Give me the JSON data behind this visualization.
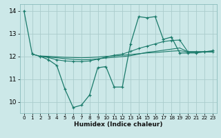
{
  "xlabel": "Humidex (Indice chaleur)",
  "bg_color": "#cce8e8",
  "grid_color": "#aacccc",
  "line_color": "#1a7a6a",
  "xlim": [
    -0.5,
    23.5
  ],
  "ylim": [
    9.5,
    14.3
  ],
  "yticks": [
    10,
    11,
    12,
    13,
    14
  ],
  "xticks": [
    0,
    1,
    2,
    3,
    4,
    5,
    6,
    7,
    8,
    9,
    10,
    11,
    12,
    13,
    14,
    15,
    16,
    17,
    18,
    19,
    20,
    21,
    22,
    23
  ],
  "s1_x": [
    0,
    1,
    2,
    3,
    4,
    5,
    6,
    7,
    8,
    9,
    10,
    11,
    12,
    13,
    14,
    15,
    16,
    17,
    18,
    19,
    20,
    21,
    22,
    23
  ],
  "s1_y": [
    14.0,
    12.1,
    12.0,
    11.85,
    11.6,
    10.55,
    9.75,
    9.85,
    10.3,
    11.5,
    11.55,
    10.65,
    10.65,
    12.55,
    13.75,
    13.7,
    13.75,
    12.75,
    12.85,
    12.15,
    12.15,
    12.15,
    12.2,
    12.25
  ],
  "s2_x": [
    1,
    2,
    3,
    4,
    5,
    6,
    7,
    8,
    9,
    10,
    11,
    12,
    13,
    14,
    15,
    16,
    17,
    18,
    19,
    20,
    21,
    22,
    23
  ],
  "s2_y": [
    12.1,
    12.0,
    11.95,
    11.85,
    11.8,
    11.78,
    11.77,
    11.8,
    11.88,
    11.97,
    12.05,
    12.1,
    12.22,
    12.35,
    12.45,
    12.55,
    12.65,
    12.7,
    12.72,
    12.2,
    12.2,
    12.2,
    12.2
  ],
  "s3_x": [
    2,
    3,
    4,
    5,
    6,
    7,
    8,
    9,
    10,
    11,
    12,
    13,
    14,
    15,
    16,
    17,
    18,
    19,
    20,
    21,
    22,
    23
  ],
  "s3_y": [
    12.0,
    11.97,
    11.94,
    11.9,
    11.87,
    11.85,
    11.86,
    11.89,
    11.93,
    11.96,
    11.99,
    12.03,
    12.1,
    12.18,
    12.22,
    12.27,
    12.32,
    12.37,
    12.2,
    12.2,
    12.2,
    12.2
  ],
  "s4_x": [
    2,
    3,
    4,
    5,
    6,
    7,
    8,
    9,
    10,
    11,
    12,
    13,
    14,
    15,
    16,
    17,
    18,
    19,
    20,
    21,
    22,
    23
  ],
  "s4_y": [
    12.02,
    12.0,
    11.98,
    11.96,
    11.95,
    11.94,
    11.95,
    11.97,
    12.0,
    12.02,
    12.05,
    12.08,
    12.12,
    12.15,
    12.17,
    12.2,
    12.23,
    12.25,
    12.2,
    12.2,
    12.2,
    12.2
  ]
}
